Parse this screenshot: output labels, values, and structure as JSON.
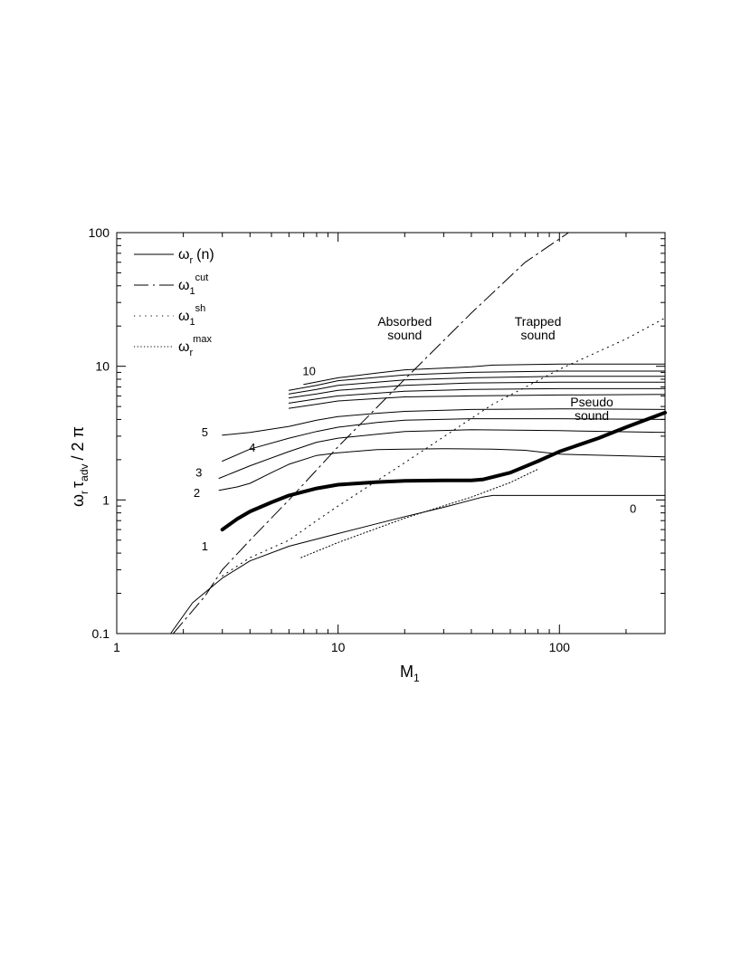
{
  "chart_data": {
    "type": "line",
    "x_scale": "log",
    "y_scale": "log",
    "xlim": [
      1,
      300
    ],
    "ylim": [
      0.1,
      100
    ],
    "grid": false,
    "legend_position": "top-left",
    "xlabel": {
      "base": "M",
      "sub": "1"
    },
    "ylabel": {
      "omega": "ω",
      "sub_r": "r",
      "tau": "τ",
      "sub_adv": "adv",
      "tail": "/ 2 π"
    },
    "x_ticks": [
      {
        "value": 1,
        "label": "1"
      },
      {
        "value": 10,
        "label": "10"
      },
      {
        "value": 100,
        "label": "100"
      }
    ],
    "y_ticks": [
      {
        "value": 0.1,
        "label": "0.1"
      },
      {
        "value": 1,
        "label": "1"
      },
      {
        "value": 10,
        "label": "10"
      },
      {
        "value": 100,
        "label": "100"
      }
    ],
    "legend": [
      {
        "symbol": "ω",
        "sub": "r",
        "sup": "",
        "tail": "(n)",
        "style": "solid"
      },
      {
        "symbol": "ω",
        "sub": "1",
        "sup": "cut",
        "tail": "",
        "style": "dashdot"
      },
      {
        "symbol": "ω",
        "sub": "1",
        "sup": "sh",
        "tail": "",
        "style": "sparse-dot"
      },
      {
        "symbol": "ω",
        "sub": "r",
        "sup": "max",
        "tail": "",
        "style": "dense-dot"
      }
    ],
    "annotations": [
      {
        "lines": [
          "Absorbed",
          "sound"
        ],
        "x": 20,
        "y": 20
      },
      {
        "lines": [
          "Trapped",
          "sound"
        ],
        "x": 80,
        "y": 20
      },
      {
        "lines": [
          "Pseudo",
          "sound"
        ],
        "x": 140,
        "y": 5.0
      }
    ],
    "series": [
      {
        "label": "0",
        "label_x": 215,
        "label_y": 0.8,
        "style": "solid",
        "width": 1,
        "points": [
          [
            1.75,
            0.1
          ],
          [
            2.2,
            0.17
          ],
          [
            3,
            0.26
          ],
          [
            4,
            0.35
          ],
          [
            6,
            0.45
          ],
          [
            10,
            0.56
          ],
          [
            20,
            0.75
          ],
          [
            30,
            0.88
          ],
          [
            45,
            1.05
          ],
          [
            50,
            1.08
          ],
          [
            100,
            1.08
          ],
          [
            300,
            1.08
          ]
        ]
      },
      {
        "label": "1",
        "label_x": 2.5,
        "label_y": 0.42,
        "style": "solid",
        "width": 4,
        "points": [
          [
            3,
            0.6
          ],
          [
            3.5,
            0.72
          ],
          [
            4,
            0.82
          ],
          [
            5,
            0.96
          ],
          [
            6,
            1.08
          ],
          [
            8,
            1.22
          ],
          [
            10,
            1.3
          ],
          [
            15,
            1.36
          ],
          [
            20,
            1.39
          ],
          [
            30,
            1.4
          ],
          [
            40,
            1.4
          ],
          [
            45,
            1.42
          ],
          [
            60,
            1.6
          ],
          [
            80,
            1.95
          ],
          [
            100,
            2.3
          ],
          [
            150,
            2.9
          ],
          [
            200,
            3.5
          ],
          [
            300,
            4.5
          ]
        ]
      },
      {
        "label": "2",
        "label_x": 2.3,
        "label_y": 1.05,
        "style": "solid",
        "width": 1,
        "points": [
          [
            2.9,
            1.18
          ],
          [
            3.5,
            1.25
          ],
          [
            4,
            1.33
          ],
          [
            5,
            1.6
          ],
          [
            6,
            1.85
          ],
          [
            8,
            2.15
          ],
          [
            10,
            2.25
          ],
          [
            15,
            2.38
          ],
          [
            20,
            2.4
          ],
          [
            30,
            2.42
          ],
          [
            50,
            2.4
          ],
          [
            70,
            2.35
          ],
          [
            100,
            2.2
          ],
          [
            300,
            2.1
          ]
        ]
      },
      {
        "label": "3",
        "label_x": 2.35,
        "label_y": 1.5,
        "style": "solid",
        "width": 1,
        "points": [
          [
            2.9,
            1.45
          ],
          [
            4,
            1.8
          ],
          [
            6,
            2.3
          ],
          [
            8,
            2.7
          ],
          [
            10,
            2.9
          ],
          [
            15,
            3.1
          ],
          [
            20,
            3.25
          ],
          [
            40,
            3.35
          ],
          [
            100,
            3.3
          ],
          [
            300,
            3.2
          ]
        ]
      },
      {
        "label": "4",
        "label_x": 4.1,
        "label_y": 2.3,
        "style": "solid",
        "width": 1,
        "points": [
          [
            3,
            1.95
          ],
          [
            4,
            2.4
          ],
          [
            6,
            2.9
          ],
          [
            8,
            3.25
          ],
          [
            10,
            3.5
          ],
          [
            15,
            3.8
          ],
          [
            20,
            3.95
          ],
          [
            40,
            4.05
          ],
          [
            100,
            4.05
          ],
          [
            300,
            4.0
          ]
        ]
      },
      {
        "label": "5",
        "label_x": 2.5,
        "label_y": 3.0,
        "style": "solid",
        "width": 1,
        "points": [
          [
            3,
            3.05
          ],
          [
            4,
            3.2
          ],
          [
            6,
            3.55
          ],
          [
            8,
            3.95
          ],
          [
            10,
            4.2
          ],
          [
            15,
            4.45
          ],
          [
            20,
            4.6
          ],
          [
            40,
            4.75
          ],
          [
            100,
            4.8
          ],
          [
            300,
            4.75
          ]
        ]
      },
      {
        "label": "",
        "style": "solid",
        "width": 1,
        "points": [
          [
            6,
            4.85
          ],
          [
            8,
            5.2
          ],
          [
            10,
            5.5
          ],
          [
            20,
            5.9
          ],
          [
            40,
            6.0
          ],
          [
            100,
            6.1
          ],
          [
            300,
            6.15
          ]
        ]
      },
      {
        "label": "",
        "style": "solid",
        "width": 1,
        "points": [
          [
            6,
            5.3
          ],
          [
            8,
            5.7
          ],
          [
            10,
            6.0
          ],
          [
            20,
            6.5
          ],
          [
            40,
            6.7
          ],
          [
            100,
            6.8
          ],
          [
            300,
            6.8
          ]
        ]
      },
      {
        "label": "",
        "style": "solid",
        "width": 1,
        "points": [
          [
            6,
            5.8
          ],
          [
            8,
            6.2
          ],
          [
            10,
            6.6
          ],
          [
            20,
            7.2
          ],
          [
            40,
            7.5
          ],
          [
            100,
            7.6
          ],
          [
            300,
            7.6
          ]
        ]
      },
      {
        "label": "",
        "style": "solid",
        "width": 1,
        "points": [
          [
            6,
            6.2
          ],
          [
            8,
            6.7
          ],
          [
            10,
            7.2
          ],
          [
            20,
            7.9
          ],
          [
            40,
            8.2
          ],
          [
            100,
            8.4
          ],
          [
            300,
            8.4
          ]
        ]
      },
      {
        "label": "",
        "style": "solid",
        "width": 1,
        "points": [
          [
            6,
            6.6
          ],
          [
            8,
            7.2
          ],
          [
            10,
            7.8
          ],
          [
            20,
            8.6
          ],
          [
            40,
            9.0
          ],
          [
            100,
            9.2
          ],
          [
            300,
            9.2
          ]
        ]
      },
      {
        "label": "10",
        "label_x": 7.4,
        "label_y": 8.6,
        "style": "solid",
        "width": 1,
        "points": [
          [
            7,
            7.3
          ],
          [
            10,
            8.2
          ],
          [
            15,
            8.9
          ],
          [
            20,
            9.4
          ],
          [
            40,
            9.9
          ],
          [
            50,
            10.2
          ],
          [
            100,
            10.4
          ],
          [
            300,
            10.4
          ]
        ]
      },
      {
        "label": "",
        "style": "dashdot",
        "width": 1,
        "points": [
          [
            1.8,
            0.1
          ],
          [
            2.5,
            0.19
          ],
          [
            3,
            0.3
          ],
          [
            4,
            0.5
          ],
          [
            6,
            1.0
          ],
          [
            10,
            2.5
          ],
          [
            20,
            8.0
          ],
          [
            40,
            25
          ],
          [
            70,
            60
          ],
          [
            110,
            100
          ]
        ]
      },
      {
        "label": "",
        "style": "sparse-dot",
        "width": 1,
        "points": [
          [
            3,
            0.27
          ],
          [
            4,
            0.37
          ],
          [
            6,
            0.5
          ],
          [
            8,
            0.7
          ],
          [
            10,
            0.9
          ],
          [
            20,
            1.9
          ],
          [
            50,
            5.2
          ],
          [
            100,
            9.5
          ],
          [
            200,
            16
          ],
          [
            300,
            23
          ]
        ]
      },
      {
        "label": "",
        "style": "dense-dot",
        "width": 1,
        "points": [
          [
            6.8,
            0.37
          ],
          [
            10,
            0.48
          ],
          [
            20,
            0.73
          ],
          [
            40,
            1.05
          ],
          [
            60,
            1.35
          ],
          [
            80,
            1.7
          ]
        ]
      }
    ]
  }
}
